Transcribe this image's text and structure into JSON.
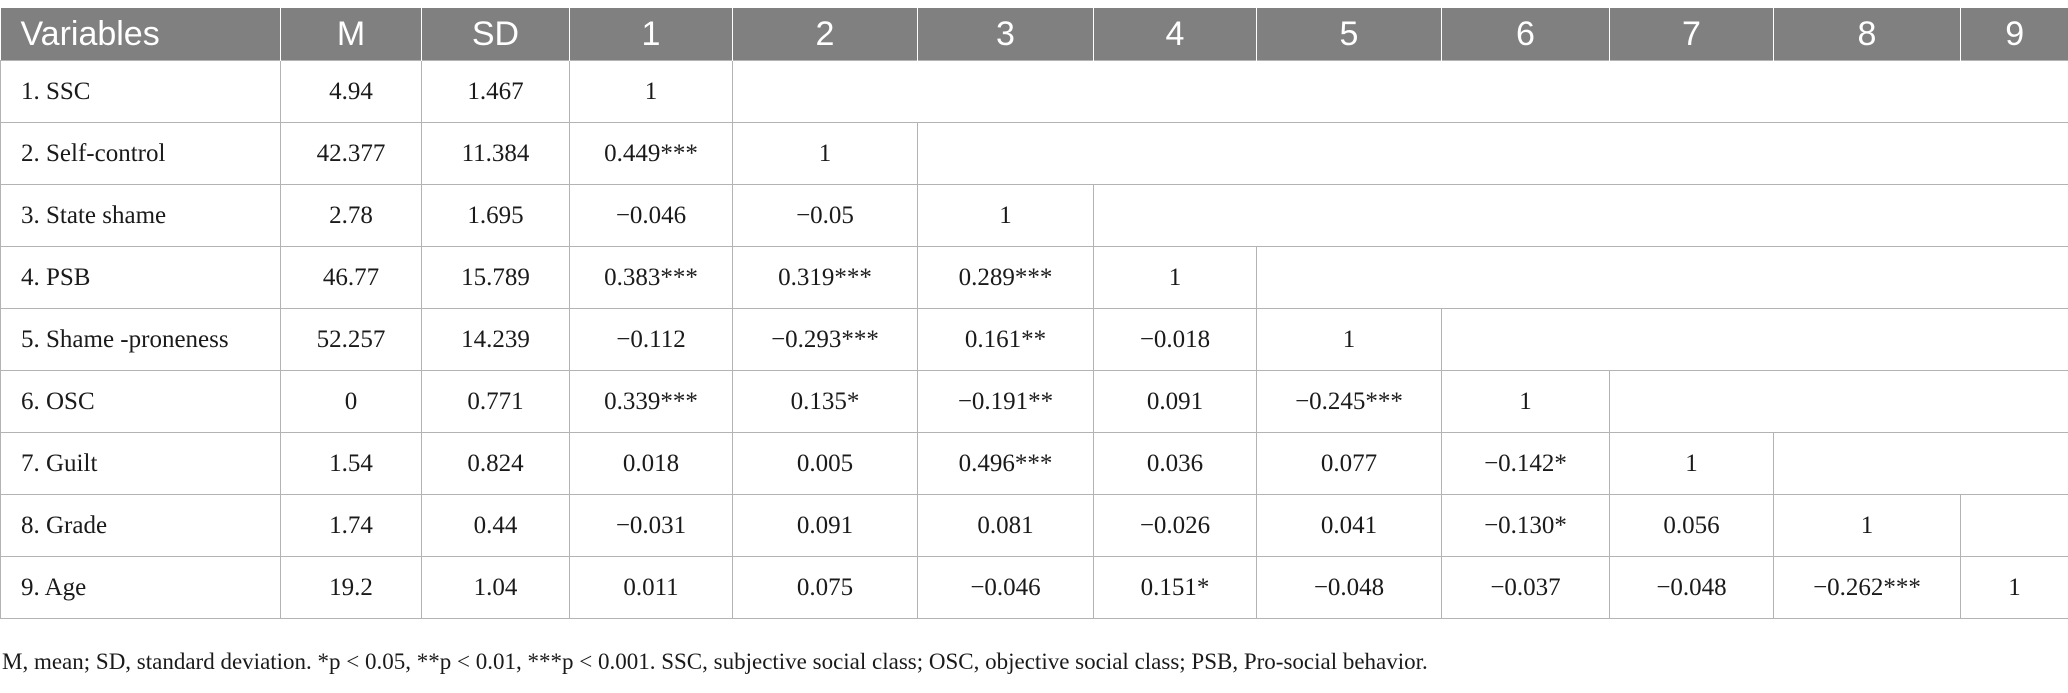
{
  "table": {
    "headers": [
      "Variables",
      "M",
      "SD",
      "1",
      "2",
      "3",
      "4",
      "5",
      "6",
      "7",
      "8",
      "9"
    ],
    "rows": [
      [
        "1. SSC",
        "4.94",
        "1.467",
        "1"
      ],
      [
        "2. Self-control",
        "42.377",
        "11.384",
        "0.449***",
        "1"
      ],
      [
        "3. State shame",
        "2.78",
        "1.695",
        "−0.046",
        "−0.05",
        "1"
      ],
      [
        "4. PSB",
        "46.77",
        "15.789",
        "0.383***",
        "0.319***",
        "0.289***",
        "1"
      ],
      [
        "5. Shame -proneness",
        "52.257",
        "14.239",
        "−0.112",
        "−0.293***",
        "0.161**",
        "−0.018",
        "1"
      ],
      [
        "6. OSC",
        "0",
        "0.771",
        "0.339***",
        "0.135*",
        "−0.191**",
        "0.091",
        "−0.245***",
        "1"
      ],
      [
        "7. Guilt",
        "1.54",
        "0.824",
        "0.018",
        "0.005",
        "0.496***",
        "0.036",
        "0.077",
        "−0.142*",
        "1"
      ],
      [
        "8. Grade",
        "1.74",
        "0.44",
        "−0.031",
        "0.091",
        "0.081",
        "−0.026",
        "0.041",
        "−0.130*",
        "0.056",
        "1"
      ],
      [
        "9. Age",
        "19.2",
        "1.04",
        "0.011",
        "0.075",
        "−0.046",
        "0.151*",
        "−0.048",
        "−0.037",
        "−0.048",
        "−0.262***",
        "1"
      ]
    ]
  },
  "note": "M, mean; SD, standard deviation. *p < 0.05, **p < 0.01, ***p < 0.001. SSC, subjective social class; OSC, objective social class; PSB, Pro-social behavior."
}
